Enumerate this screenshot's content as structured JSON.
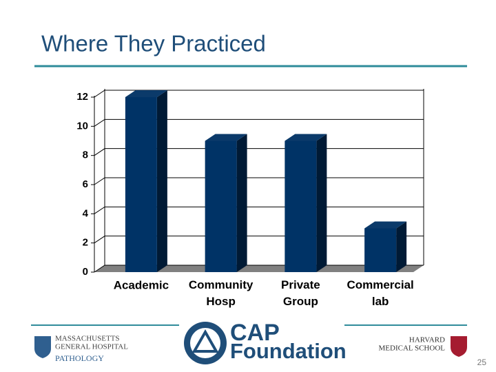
{
  "chart_data": {
    "type": "bar3d",
    "title": "Where They Practiced",
    "categories": [
      "Academic",
      "Community Hosp",
      "Private Group",
      "Commercial lab"
    ],
    "values": [
      12,
      9,
      9,
      3
    ],
    "color": "#003366",
    "ylim": [
      0,
      12
    ],
    "yticks": [
      0,
      2,
      4,
      6,
      8,
      10,
      12
    ],
    "grid": true
  },
  "footer": {
    "mgh_line1": "MASSACHUSETTS",
    "mgh_line2": "GENERAL HOSPITAL",
    "mgh_dept": "PATHOLOGY",
    "cap_line1": "CAP",
    "cap_line2": "Foundation",
    "harvard_line1": "HARVARD",
    "harvard_line2": "MEDICAL SCHOOL",
    "page_number": "25"
  }
}
